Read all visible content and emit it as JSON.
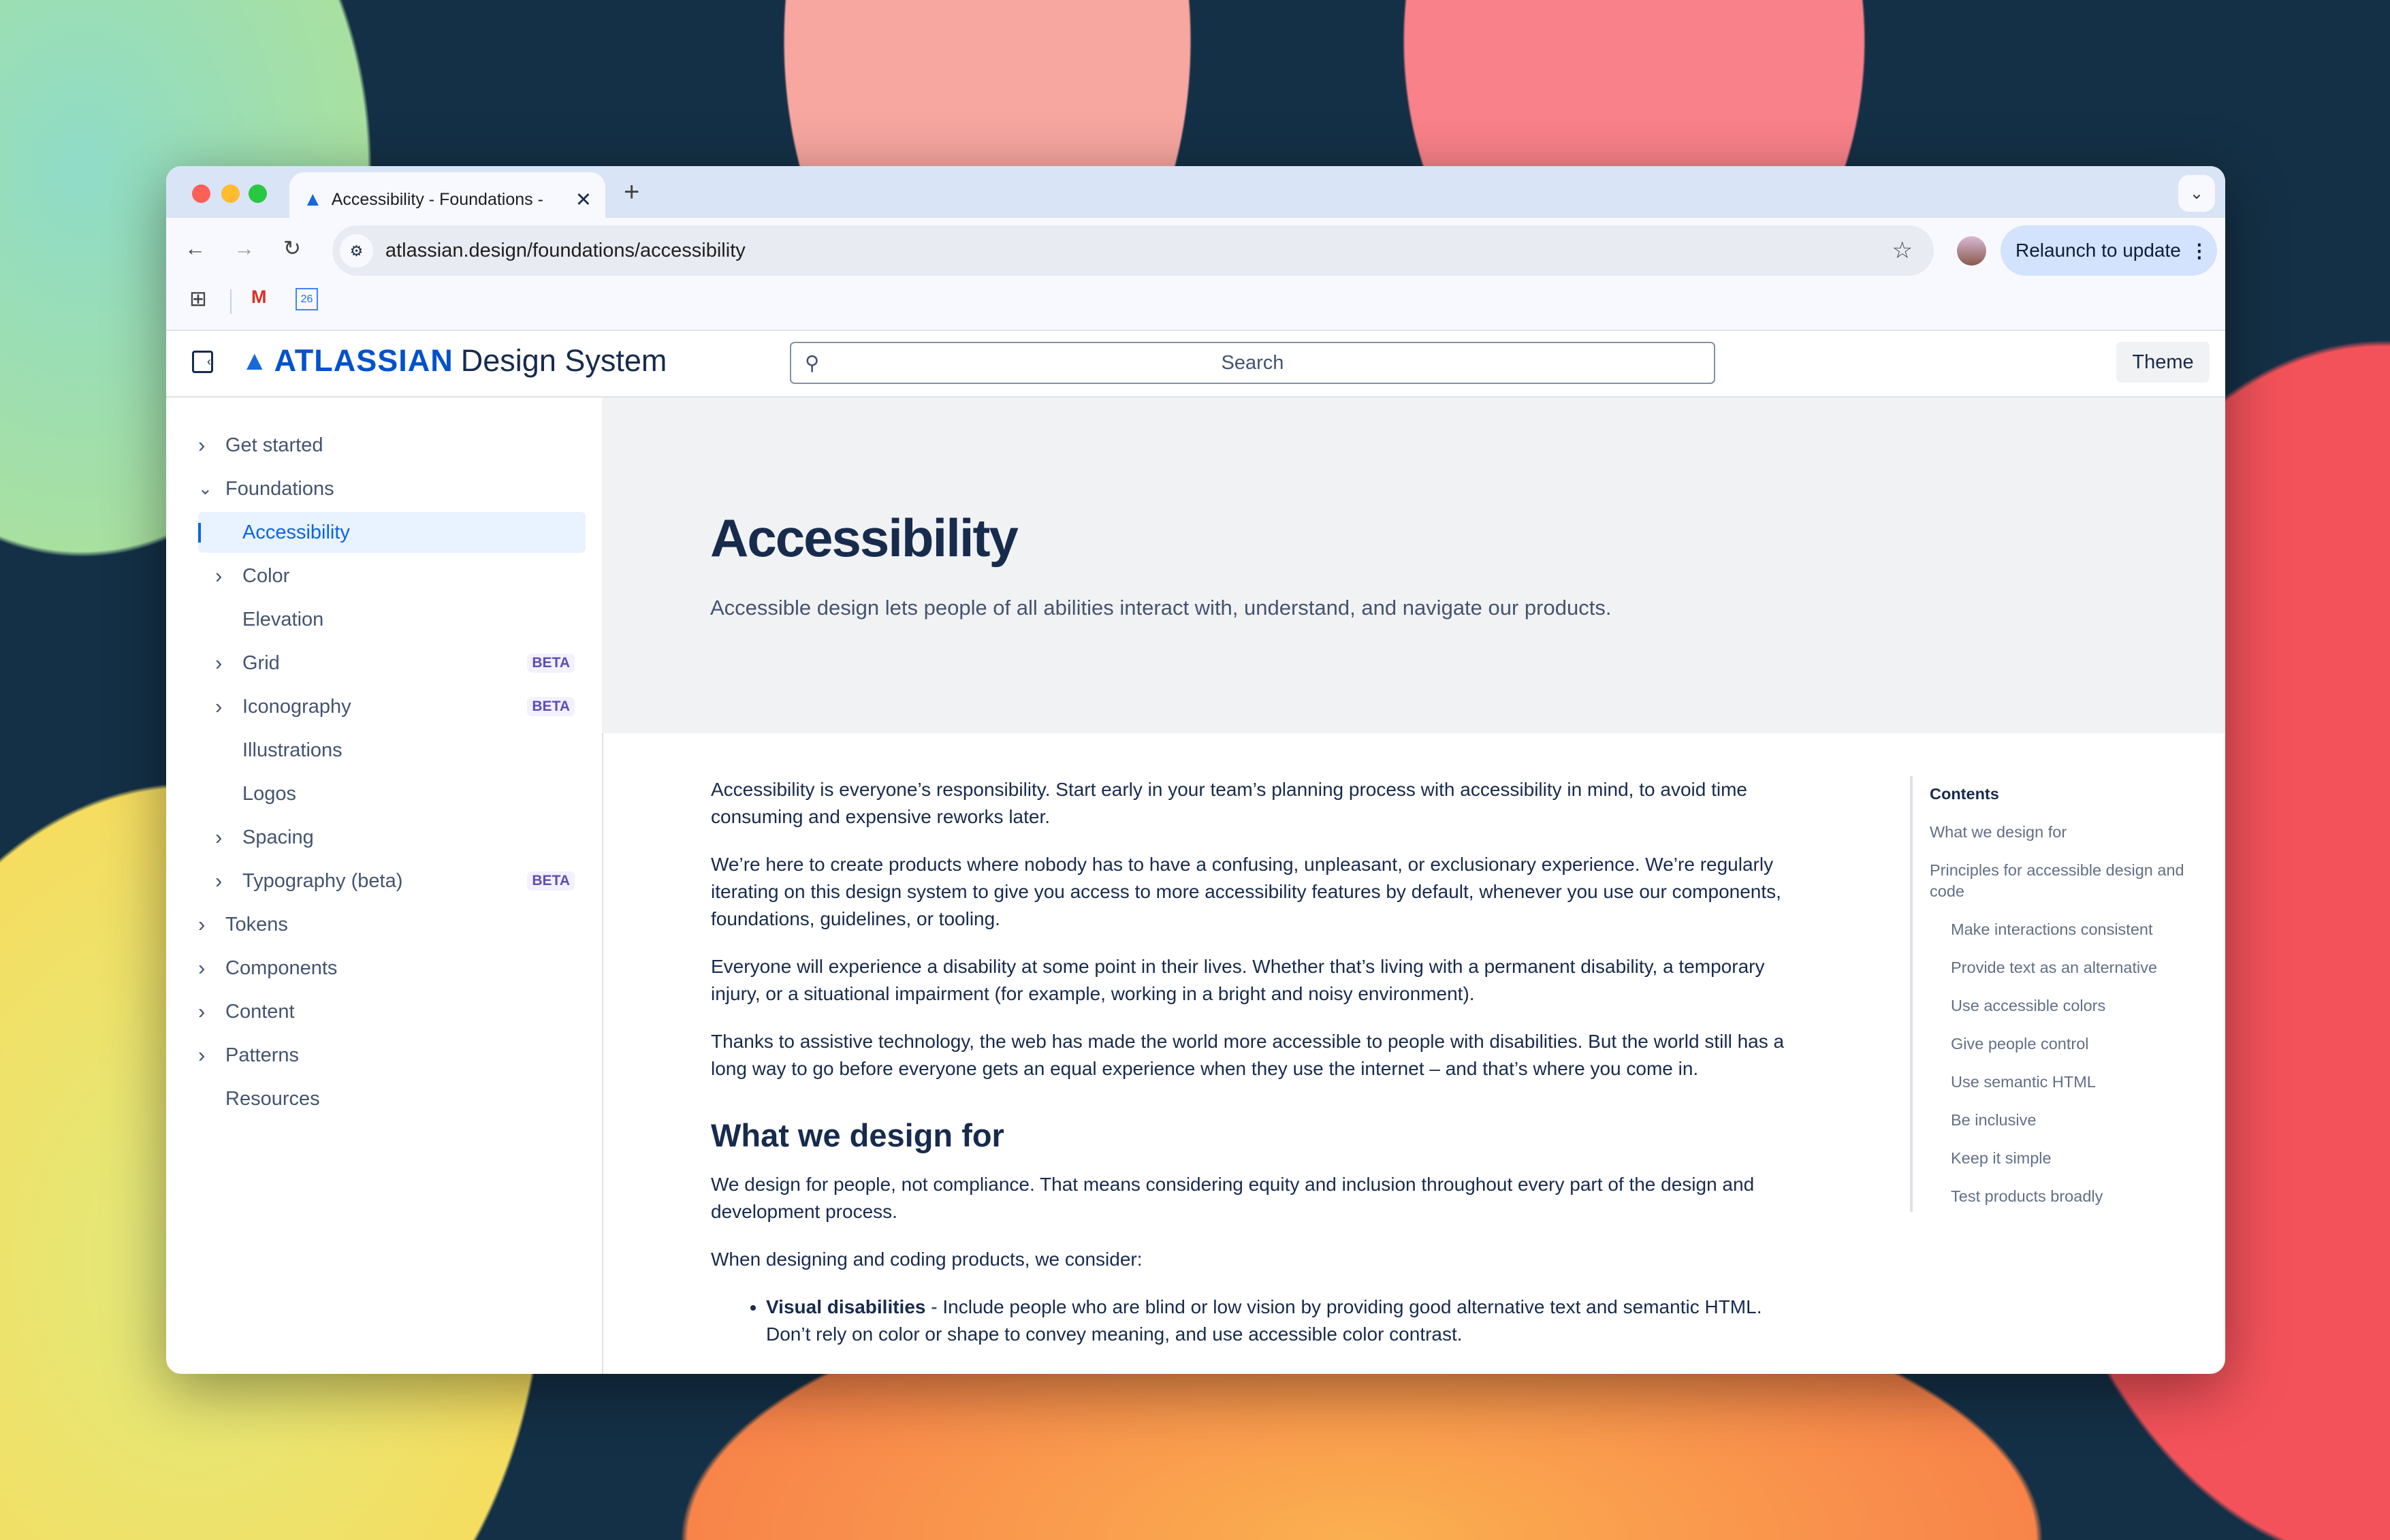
{
  "browser": {
    "tab_title": "Accessibility - Foundations - ",
    "url": "atlassian.design/foundations/accessibility",
    "relaunch_label": "Relaunch to update",
    "calendar_day": "26"
  },
  "header": {
    "brand": "ATLASSIAN",
    "product": "Design System",
    "search_placeholder": "Search",
    "theme_label": "Theme"
  },
  "sidebar": {
    "items": [
      {
        "label": "Get started",
        "chevron": "right",
        "level": 0
      },
      {
        "label": "Foundations",
        "chevron": "down",
        "level": 0
      },
      {
        "label": "Accessibility",
        "level": 1,
        "selected": true
      },
      {
        "label": "Color",
        "chevron": "right",
        "level": 1
      },
      {
        "label": "Elevation",
        "level": 1
      },
      {
        "label": "Grid",
        "chevron": "right",
        "level": 1,
        "badge": "BETA"
      },
      {
        "label": "Iconography",
        "chevron": "right",
        "level": 1,
        "badge": "BETA"
      },
      {
        "label": "Illustrations",
        "level": 1
      },
      {
        "label": "Logos",
        "level": 1
      },
      {
        "label": "Spacing",
        "chevron": "right",
        "level": 1
      },
      {
        "label": "Typography (beta)",
        "chevron": "right",
        "level": 1,
        "badge": "BETA"
      },
      {
        "label": "Tokens",
        "chevron": "right",
        "level": 0
      },
      {
        "label": "Components",
        "chevron": "right",
        "level": 0
      },
      {
        "label": "Content",
        "chevron": "right",
        "level": 0
      },
      {
        "label": "Patterns",
        "chevron": "right",
        "level": 0
      },
      {
        "label": "Resources",
        "level": 0
      }
    ]
  },
  "hero": {
    "title": "Accessibility",
    "subtitle": "Accessible design lets people of all abilities interact with, understand, and navigate our products."
  },
  "content": {
    "paragraphs": [
      "Accessibility is everyone’s responsibility. Start early in your team’s planning process with accessibility in mind, to avoid time consuming and expensive reworks later.",
      "We’re here to create products where nobody has to have a confusing, unpleasant, or exclusionary experience. We’re regularly iterating on this design system to give you access to more accessibility features by default, whenever you use our components, foundations, guidelines, or tooling.",
      "Everyone will experience a disability at some point in their lives. Whether that’s living with a permanent disability, a temporary injury, or a situational impairment (for example, working in a bright and noisy environment).",
      "Thanks to assistive technology, the web has made the world more accessible to people with disabilities. But the world still has a long way to go before everyone gets an equal experience when they use the internet – and that’s where you come in."
    ],
    "section_heading": "What we design for",
    "section_paragraphs": [
      "We design for people, not compliance. That means considering equity and inclusion throughout every part of the design and development process.",
      "When designing and coding products, we consider:"
    ],
    "bullet": {
      "bold": "Visual disabilities",
      "text": " - Include people who are blind or low vision by providing good alternative text and semantic HTML. Don’t rely on color or shape to convey meaning, and use accessible color contrast."
    }
  },
  "toc": {
    "title": "Contents",
    "items": [
      {
        "label": "What we design for",
        "level": 0
      },
      {
        "label": "Principles for accessible design and code",
        "level": 0
      },
      {
        "label": "Make interactions consistent",
        "level": 1
      },
      {
        "label": "Provide text as an alternative",
        "level": 1
      },
      {
        "label": "Use accessible colors",
        "level": 1
      },
      {
        "label": "Give people control",
        "level": 1
      },
      {
        "label": "Use semantic HTML",
        "level": 1
      },
      {
        "label": "Be inclusive",
        "level": 1
      },
      {
        "label": "Keep it simple",
        "level": 1
      },
      {
        "label": "Test products broadly",
        "level": 1
      }
    ]
  },
  "colors": {
    "brand": "#0052cc",
    "selected_text": "#0c66e4",
    "selected_bg": "#e9f2ff",
    "text": "#172b4d",
    "beta": "#5e4db2"
  }
}
